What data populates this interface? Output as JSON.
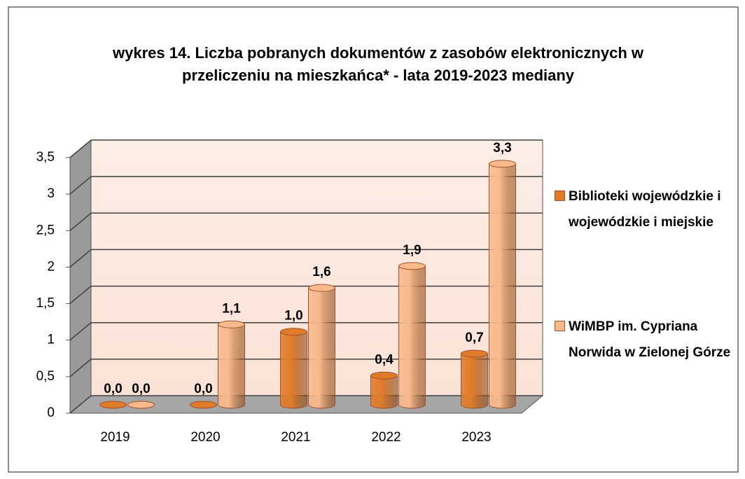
{
  "chart_data": {
    "type": "bar3d",
    "title": "wykres 14. Liczba pobranych dokumentów z zasobów elektronicznych w przeliczeniu na mieszkańca* - lata 2019-2023 mediany",
    "categories": [
      "2019",
      "2020",
      "2021",
      "2022",
      "2023"
    ],
    "series": [
      {
        "name": "Biblioteki wojewódzkie i wojewódzkie i miejskie",
        "color": "#e07b2a",
        "values": [
          0,
          0,
          1.0,
          0.4,
          0.7
        ],
        "value_labels": [
          "0,0",
          "0,0",
          "1,0",
          "0,4",
          "0,7"
        ]
      },
      {
        "name": "WiMBP im. Cypriana Norwida w Zielonej Górze",
        "color": "#f8b98c",
        "values": [
          0,
          1.1,
          1.6,
          1.9,
          3.3
        ],
        "value_labels": [
          "0,0",
          "1,1",
          "1,6",
          "1,9",
          "3,3"
        ]
      }
    ],
    "ylim": [
      0,
      3.5
    ],
    "yticks": [
      0,
      {
        "value": 0.5,
        "label": "0,5"
      },
      1,
      {
        "value": 1.5,
        "label": "1,5"
      },
      2,
      {
        "value": 2.5,
        "label": "2,5"
      },
      3,
      {
        "value": 3.5,
        "label": "3,5"
      }
    ],
    "grid": true,
    "legend": "right"
  }
}
